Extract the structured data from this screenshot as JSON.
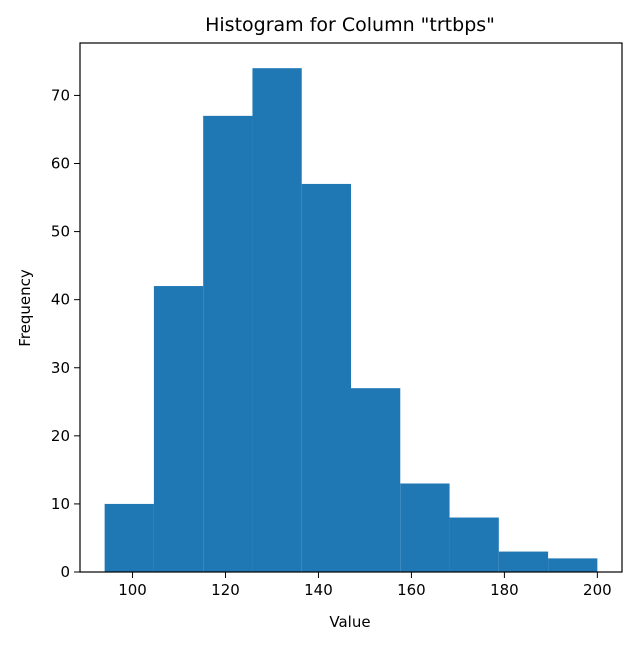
{
  "chart_data": {
    "type": "bar",
    "title": "Histogram for Column \"trtbps\"",
    "xlabel": "Value",
    "ylabel": "Frequency",
    "bin_edges": [
      94,
      104.6,
      115.2,
      125.8,
      136.4,
      147,
      157.6,
      168.2,
      178.8,
      189.4,
      200
    ],
    "values": [
      10,
      42,
      67,
      74,
      57,
      27,
      13,
      8,
      3,
      2
    ],
    "xlim": [
      88.7,
      205.3
    ],
    "ylim": [
      0,
      77.7
    ],
    "xticks": [
      100,
      120,
      140,
      160,
      180,
      200
    ],
    "yticks": [
      0,
      10,
      20,
      30,
      40,
      50,
      60,
      70
    ],
    "bar_color": "#1f77b4",
    "grid": false,
    "legend": "none"
  }
}
